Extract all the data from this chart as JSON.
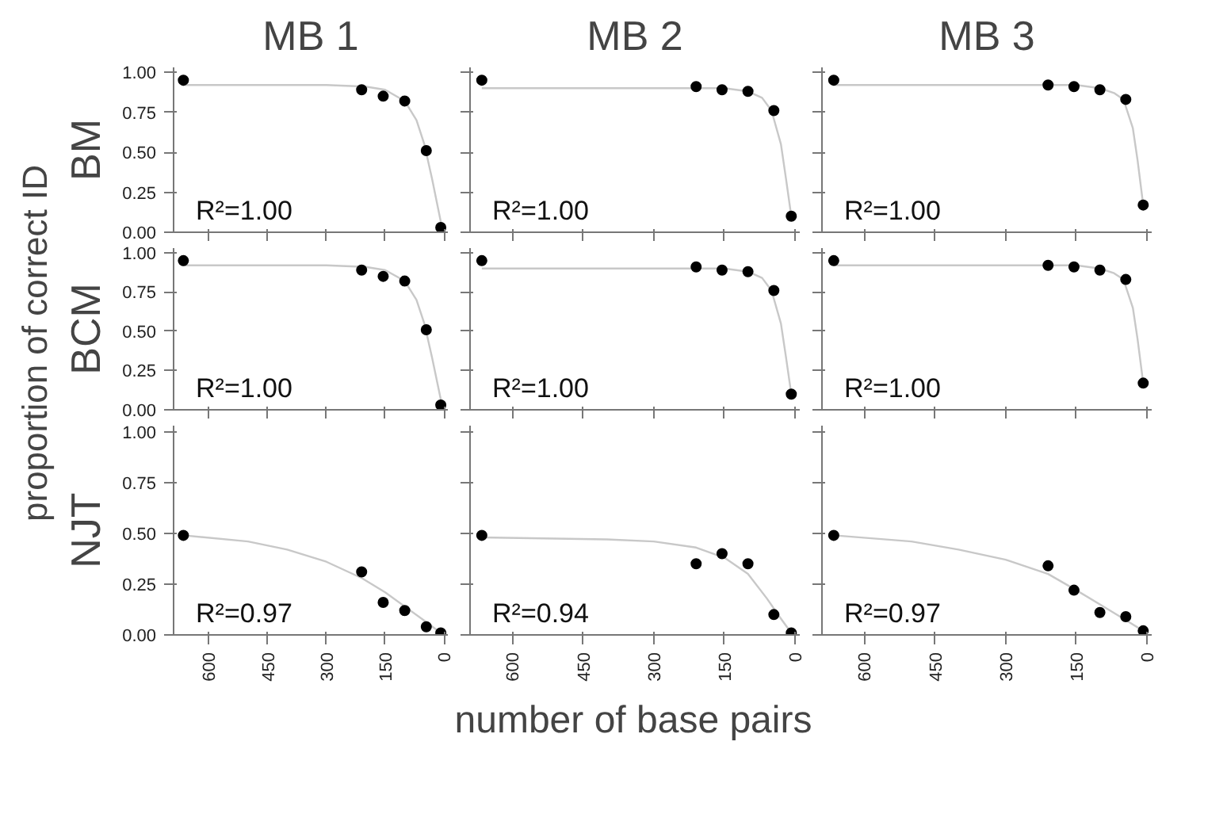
{
  "chart_data": [
    {
      "type": "scatter",
      "title": "MB 1",
      "ylabel": "BM",
      "annotations": [
        "R²=1.00",
        "proportion of correct ID",
        "number of base pairs"
      ],
      "xlim": [
        690,
        -10
      ],
      "ylim": [
        0,
        1.03
      ],
      "xticks": [
        600,
        450,
        300,
        150,
        0
      ],
      "yticks": [
        {
          "value": 0,
          "label": "0.00"
        },
        {
          "value": 0.25,
          "label": "0.25"
        },
        {
          "value": 0.5,
          "label": "0.50"
        },
        {
          "value": 0.75,
          "label": "0.75"
        },
        {
          "value": 1,
          "label": "1.00"
        }
      ],
      "tick_labels": "y",
      "grid": false,
      "marker": "circle",
      "series": [
        {
          "type": "line",
          "marker": "none",
          "color": "#c8c8c8",
          "x": [
            670,
            300,
            200,
            150,
            100,
            70,
            50,
            30,
            5
          ],
          "values": [
            0.92,
            0.92,
            0.91,
            0.89,
            0.82,
            0.7,
            0.55,
            0.33,
            0.03
          ]
        },
        {
          "color": "#000000",
          "x": [
            665,
            210,
            155,
            100,
            45,
            8
          ],
          "values": [
            0.95,
            0.89,
            0.85,
            0.82,
            0.51,
            0.03
          ]
        }
      ]
    },
    {
      "type": "scatter",
      "title": "MB 2",
      "annotations": [
        "R²=1.00"
      ],
      "xlim": [
        690,
        -10
      ],
      "ylim": [
        0,
        1.03
      ],
      "xticks": [
        600,
        450,
        300,
        150,
        0
      ],
      "yticks": [
        0,
        0.25,
        0.5,
        0.75,
        1
      ],
      "tick_labels": false,
      "grid": false,
      "marker": "circle",
      "series": [
        {
          "type": "line",
          "marker": "none",
          "color": "#c8c8c8",
          "x": [
            665,
            300,
            150,
            100,
            70,
            50,
            30,
            20,
            8
          ],
          "values": [
            0.9,
            0.9,
            0.9,
            0.88,
            0.84,
            0.76,
            0.55,
            0.35,
            0.1
          ]
        },
        {
          "color": "#000000",
          "x": [
            665,
            210,
            155,
            100,
            45,
            8
          ],
          "values": [
            0.95,
            0.91,
            0.89,
            0.88,
            0.76,
            0.1
          ]
        }
      ]
    },
    {
      "type": "scatter",
      "title": "MB 3",
      "annotations": [
        "R²=1.00"
      ],
      "xlim": [
        690,
        -10
      ],
      "ylim": [
        0,
        1.03
      ],
      "xticks": [
        600,
        450,
        300,
        150,
        0
      ],
      "yticks": [
        0,
        0.25,
        0.5,
        0.75,
        1
      ],
      "tick_labels": false,
      "grid": false,
      "marker": "circle",
      "series": [
        {
          "type": "line",
          "marker": "none",
          "color": "#c8c8c8",
          "x": [
            665,
            300,
            150,
            100,
            70,
            50,
            30,
            20,
            8
          ],
          "values": [
            0.92,
            0.92,
            0.92,
            0.9,
            0.87,
            0.83,
            0.65,
            0.45,
            0.17
          ]
        },
        {
          "color": "#000000",
          "x": [
            665,
            210,
            155,
            100,
            45,
            8
          ],
          "values": [
            0.95,
            0.92,
            0.91,
            0.89,
            0.83,
            0.17
          ]
        }
      ]
    },
    {
      "type": "scatter",
      "ylabel": "BCM",
      "annotations": [
        "R²=1.00"
      ],
      "xlim": [
        690,
        -10
      ],
      "ylim": [
        0,
        1.03
      ],
      "xticks": [
        600,
        450,
        300,
        150,
        0
      ],
      "yticks": [
        {
          "value": 0,
          "label": "0.00"
        },
        {
          "value": 0.25,
          "label": "0.25"
        },
        {
          "value": 0.5,
          "label": "0.50"
        },
        {
          "value": 0.75,
          "label": "0.75"
        },
        {
          "value": 1,
          "label": "1.00"
        }
      ],
      "tick_labels": "y",
      "grid": false,
      "marker": "circle",
      "series": [
        {
          "type": "line",
          "marker": "none",
          "color": "#c8c8c8",
          "x": [
            670,
            300,
            200,
            150,
            100,
            70,
            50,
            30,
            5
          ],
          "values": [
            0.92,
            0.92,
            0.91,
            0.89,
            0.82,
            0.7,
            0.55,
            0.33,
            0.03
          ]
        },
        {
          "color": "#000000",
          "x": [
            665,
            210,
            155,
            100,
            45,
            8
          ],
          "values": [
            0.95,
            0.89,
            0.85,
            0.82,
            0.51,
            0.03
          ]
        }
      ]
    },
    {
      "type": "scatter",
      "annotations": [
        "R²=1.00"
      ],
      "xlim": [
        690,
        -10
      ],
      "ylim": [
        0,
        1.03
      ],
      "xticks": [
        600,
        450,
        300,
        150,
        0
      ],
      "yticks": [
        0,
        0.25,
        0.5,
        0.75,
        1
      ],
      "tick_labels": false,
      "grid": false,
      "marker": "circle",
      "series": [
        {
          "type": "line",
          "marker": "none",
          "color": "#c8c8c8",
          "x": [
            665,
            300,
            150,
            100,
            70,
            50,
            30,
            20,
            8
          ],
          "values": [
            0.9,
            0.9,
            0.9,
            0.88,
            0.84,
            0.76,
            0.55,
            0.35,
            0.1
          ]
        },
        {
          "color": "#000000",
          "x": [
            665,
            210,
            155,
            100,
            45,
            8
          ],
          "values": [
            0.95,
            0.91,
            0.89,
            0.88,
            0.76,
            0.1
          ]
        }
      ]
    },
    {
      "type": "scatter",
      "annotations": [
        "R²=1.00"
      ],
      "xlim": [
        690,
        -10
      ],
      "ylim": [
        0,
        1.03
      ],
      "xticks": [
        600,
        450,
        300,
        150,
        0
      ],
      "yticks": [
        0,
        0.25,
        0.5,
        0.75,
        1
      ],
      "tick_labels": false,
      "grid": false,
      "marker": "circle",
      "series": [
        {
          "type": "line",
          "marker": "none",
          "color": "#c8c8c8",
          "x": [
            665,
            300,
            150,
            100,
            70,
            50,
            30,
            20,
            8
          ],
          "values": [
            0.92,
            0.92,
            0.92,
            0.9,
            0.87,
            0.83,
            0.65,
            0.45,
            0.17
          ]
        },
        {
          "color": "#000000",
          "x": [
            665,
            210,
            155,
            100,
            45,
            8
          ],
          "values": [
            0.95,
            0.92,
            0.91,
            0.89,
            0.83,
            0.17
          ]
        }
      ]
    },
    {
      "type": "scatter",
      "ylabel": "NJT",
      "annotations": [
        "R²=0.97"
      ],
      "xlim": [
        690,
        -10
      ],
      "ylim": [
        0,
        1.03
      ],
      "xticks": [
        600,
        450,
        300,
        150,
        0
      ],
      "yticks": [
        {
          "value": 0,
          "label": "0.00"
        },
        {
          "value": 0.25,
          "label": "0.25"
        },
        {
          "value": 0.5,
          "label": "0.50"
        },
        {
          "value": 0.75,
          "label": "0.75"
        },
        {
          "value": 1,
          "label": "1.00"
        }
      ],
      "grid": false,
      "marker": "circle",
      "series": [
        {
          "type": "line",
          "marker": "none",
          "color": "#c8c8c8",
          "x": [
            665,
            500,
            400,
            300,
            210,
            150,
            100,
            50,
            8
          ],
          "values": [
            0.49,
            0.46,
            0.42,
            0.36,
            0.28,
            0.21,
            0.14,
            0.07,
            0.01
          ]
        },
        {
          "color": "#000000",
          "x": [
            665,
            210,
            155,
            100,
            45,
            8
          ],
          "values": [
            0.49,
            0.31,
            0.16,
            0.12,
            0.04,
            0.01
          ]
        }
      ]
    },
    {
      "type": "scatter",
      "annotations": [
        "R²=0.94"
      ],
      "xlim": [
        690,
        -10
      ],
      "ylim": [
        0,
        1.03
      ],
      "xticks": [
        600,
        450,
        300,
        150,
        0
      ],
      "yticks": [
        0,
        0.25,
        0.5,
        0.75,
        1
      ],
      "tick_labels": "x",
      "grid": false,
      "marker": "circle",
      "series": [
        {
          "type": "line",
          "marker": "none",
          "color": "#c8c8c8",
          "x": [
            665,
            400,
            300,
            210,
            150,
            100,
            60,
            30,
            8
          ],
          "values": [
            0.48,
            0.47,
            0.46,
            0.43,
            0.38,
            0.3,
            0.18,
            0.08,
            0.01
          ]
        },
        {
          "color": "#000000",
          "x": [
            665,
            210,
            155,
            100,
            45,
            8
          ],
          "values": [
            0.49,
            0.35,
            0.4,
            0.35,
            0.1,
            0.01
          ]
        }
      ]
    },
    {
      "type": "scatter",
      "annotations": [
        "R²=0.97"
      ],
      "xlim": [
        690,
        -10
      ],
      "ylim": [
        0,
        1.03
      ],
      "xticks": [
        600,
        450,
        300,
        150,
        0
      ],
      "yticks": [
        0,
        0.25,
        0.5,
        0.75,
        1
      ],
      "tick_labels": "x",
      "grid": false,
      "marker": "circle",
      "series": [
        {
          "type": "line",
          "marker": "none",
          "color": "#c8c8c8",
          "x": [
            665,
            500,
            400,
            300,
            210,
            150,
            100,
            50,
            8
          ],
          "values": [
            0.49,
            0.46,
            0.42,
            0.37,
            0.3,
            0.22,
            0.15,
            0.08,
            0.02
          ]
        },
        {
          "color": "#000000",
          "x": [
            665,
            210,
            155,
            100,
            45,
            8
          ],
          "values": [
            0.49,
            0.34,
            0.22,
            0.11,
            0.09,
            0.02
          ]
        }
      ]
    }
  ]
}
